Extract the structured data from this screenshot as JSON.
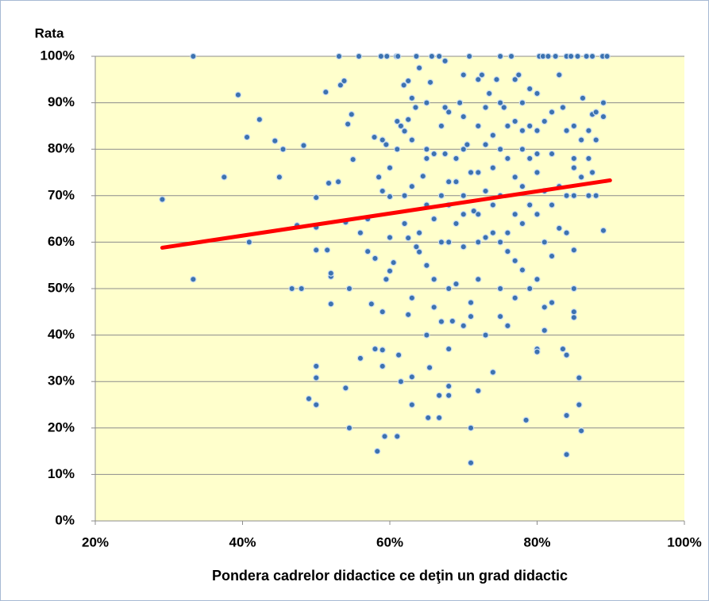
{
  "chart_data": {
    "type": "scatter",
    "y_label": "Rata",
    "x_label": "Pondera cadrelor didactice ce deţin un grad didactic",
    "xlim": [
      20,
      100
    ],
    "xticks": [
      {
        "value": 20,
        "label": "20%"
      },
      {
        "value": 40,
        "label": "40%"
      },
      {
        "value": 60,
        "label": "60%"
      },
      {
        "value": 80,
        "label": "80%"
      },
      {
        "value": 100,
        "label": "100%"
      }
    ],
    "ylim": [
      0,
      100
    ],
    "yticks": [
      {
        "value": 0,
        "label": "0%"
      },
      {
        "value": 10,
        "label": "10%"
      },
      {
        "value": 20,
        "label": "20%"
      },
      {
        "value": 30,
        "label": "30%"
      },
      {
        "value": 40,
        "label": "40%"
      },
      {
        "value": 50,
        "label": "50%"
      },
      {
        "value": 60,
        "label": "60%"
      },
      {
        "value": 70,
        "label": "70%"
      },
      {
        "value": 80,
        "label": "80%"
      },
      {
        "value": 90,
        "label": "90%"
      },
      {
        "value": 100,
        "label": "100%"
      }
    ],
    "grid": true,
    "color": "#3c72b0",
    "x": [
      29.1,
      33.3,
      33.3,
      37.5,
      39.4,
      40.6,
      40.9,
      42.3,
      44.4,
      45,
      45.5,
      46.7,
      47.4,
      48,
      48.3,
      49,
      50,
      50,
      50,
      50,
      50,
      50,
      51.3,
      51.5,
      51.7,
      52,
      52,
      52,
      53,
      53.1,
      53.3,
      53.8,
      54,
      54,
      54.3,
      54.5,
      54.5,
      54.8,
      55,
      55.8,
      56,
      56,
      57,
      57,
      57.5,
      57.9,
      58,
      58,
      58.3,
      58.5,
      58.8,
      59,
      59,
      59,
      59,
      59,
      59.3,
      59.5,
      59.5,
      59.6,
      60,
      60,
      60,
      60,
      60.5,
      60.9,
      61,
      61,
      61,
      61.1,
      61.2,
      61.5,
      61.5,
      61.9,
      62,
      62,
      62,
      62.5,
      62.5,
      62.5,
      62.5,
      63,
      63,
      63,
      63,
      63,
      63,
      63.6,
      63.5,
      63.6,
      64,
      64,
      64,
      64.5,
      65,
      65,
      65,
      65,
      65,
      65,
      65.2,
      65.4,
      65.5,
      65.7,
      66,
      66,
      66,
      66,
      66.7,
      66.7,
      66.7,
      67,
      67,
      67,
      67,
      67.5,
      67.5,
      67.5,
      68,
      68,
      68,
      68,
      68,
      68,
      68,
      68,
      68.5,
      69,
      69,
      69,
      69,
      69.5,
      70,
      70,
      70,
      70,
      70,
      70,
      70,
      70.5,
      70.8,
      71,
      71,
      71,
      71,
      71,
      71.4,
      72,
      72,
      72,
      72,
      72,
      72,
      72,
      72.5,
      73,
      73,
      73,
      73,
      73,
      73.5,
      74,
      74,
      74,
      74,
      74,
      74.5,
      75,
      75,
      75,
      75,
      75,
      75,
      75,
      75.5,
      76,
      76,
      76,
      76,
      76,
      76.5,
      77,
      77,
      77,
      77,
      77,
      77,
      77.5,
      78,
      78,
      78,
      78,
      78,
      78,
      78.5,
      79,
      79,
      79,
      79,
      79,
      80,
      80,
      80,
      80,
      80,
      80,
      80,
      80,
      80.3,
      80.8,
      81,
      81,
      81,
      81,
      81,
      81.5,
      82,
      82,
      82,
      82,
      82,
      82.5,
      83,
      83,
      83,
      83.5,
      83.5,
      84,
      84,
      84,
      84,
      84,
      84,
      84,
      84.6,
      85,
      85,
      85,
      85,
      85,
      85,
      85,
      85,
      85.5,
      85.7,
      85.7,
      86,
      86,
      86,
      86.2,
      86.7,
      87,
      87,
      87,
      87.5,
      87.5,
      87.5,
      88,
      88,
      88,
      88.9,
      89,
      89,
      89,
      89.5
    ],
    "values": [
      69.2,
      100,
      52,
      74,
      91.7,
      82.6,
      60,
      86.4,
      81.8,
      74,
      80,
      50,
      63.6,
      50,
      80.8,
      26.3,
      69.6,
      63.2,
      58.3,
      33.3,
      30.8,
      25,
      92.3,
      58.3,
      72.7,
      52.6,
      53.3,
      46.7,
      73,
      100,
      93.8,
      94.7,
      64.3,
      28.6,
      85.4,
      50,
      20,
      87.5,
      77.8,
      100,
      62,
      35,
      65,
      58,
      46.7,
      82.6,
      37,
      56.5,
      15,
      74,
      100,
      82,
      71,
      45,
      36.8,
      33.3,
      18.2,
      81,
      52,
      100,
      53.8,
      61,
      69.8,
      76,
      55.6,
      100,
      86,
      80,
      18.2,
      100,
      35.7,
      85,
      30,
      93.8,
      83.9,
      64,
      70,
      94.7,
      86.4,
      60.9,
      44.4,
      91,
      82,
      72,
      48,
      31,
      25,
      100,
      89,
      59,
      97.5,
      62,
      57.9,
      74.2,
      90,
      80,
      78,
      68,
      55,
      40,
      22.2,
      33,
      94.4,
      100,
      79,
      65,
      52,
      46,
      100,
      27,
      22.2,
      85,
      70,
      60,
      42.9,
      99,
      89,
      79,
      88,
      73,
      68,
      60,
      50,
      37,
      29,
      27,
      43,
      78,
      73,
      64,
      51,
      90,
      96,
      87,
      80,
      70,
      66,
      59,
      42,
      81,
      100,
      75,
      47,
      44,
      20,
      12.5,
      66.7,
      95,
      85,
      75,
      66,
      60,
      52,
      28,
      96,
      89,
      81,
      71,
      61,
      40,
      92,
      83,
      76,
      68,
      62,
      32,
      95,
      100,
      90,
      80,
      70,
      60,
      50,
      44,
      89,
      85,
      78,
      62,
      58,
      42,
      100,
      95,
      86,
      74,
      66,
      56,
      48,
      96,
      90,
      84,
      80,
      72,
      64,
      54,
      21.7,
      93,
      85,
      78,
      68,
      50,
      92,
      84,
      79,
      75,
      66,
      52,
      37,
      36.4,
      100,
      100,
      86,
      71,
      60,
      46,
      41,
      100,
      88,
      79,
      68,
      57,
      47,
      100,
      96,
      72,
      63,
      89,
      37,
      100,
      84,
      70,
      62,
      35.7,
      22.7,
      14.3,
      100,
      85,
      78,
      76,
      70,
      58.3,
      50,
      45,
      43.8,
      100,
      30.8,
      25,
      82,
      74,
      19.4,
      91,
      100,
      84,
      78,
      70,
      100,
      87.5,
      75,
      88,
      82,
      70,
      100,
      90,
      87,
      62.5,
      100
    ],
    "trendline": {
      "x": [
        29.1,
        89.9
      ],
      "values": [
        58.8,
        73.3
      ],
      "color": "#ff0000"
    }
  }
}
